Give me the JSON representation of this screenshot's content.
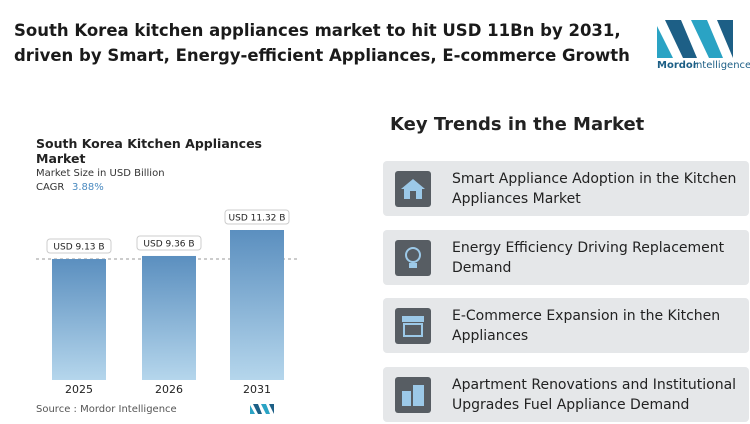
{
  "header": {
    "title_lines": [
      "South Korea kitchen appliances market to hit USD 11Bn by 2031,",
      "driven by Smart, Energy-efficient Appliances, E-commerce Growth"
    ],
    "logo": [
      "Mordor",
      "Intelligence"
    ]
  },
  "chart_data": {
    "type": "bar",
    "title": "South Korea Kitchen Appliances Market",
    "subtitle": "Market Size in USD Billion",
    "cagr_label": "CAGR",
    "cagr_value": "3.88%",
    "categories": [
      "2025",
      "2026",
      "2031"
    ],
    "values": [
      9.13,
      9.36,
      11.32
    ],
    "value_labels": [
      "USD 9.13 B",
      "USD 9.36 B",
      "USD 11.32 B"
    ],
    "color": "#5b8fbf",
    "source": "Source :  Mordor Intelligence"
  },
  "trends": {
    "title": "Key Trends in the Market",
    "items": [
      "Smart Appliance Adoption in the Kitchen Appliances Market",
      "Energy Efficiency Driving Replacement Demand",
      "E-Commerce Expansion in the Kitchen Appliances",
      "Apartment Renovations and Institutional Upgrades Fuel Appliance Demand"
    ]
  }
}
